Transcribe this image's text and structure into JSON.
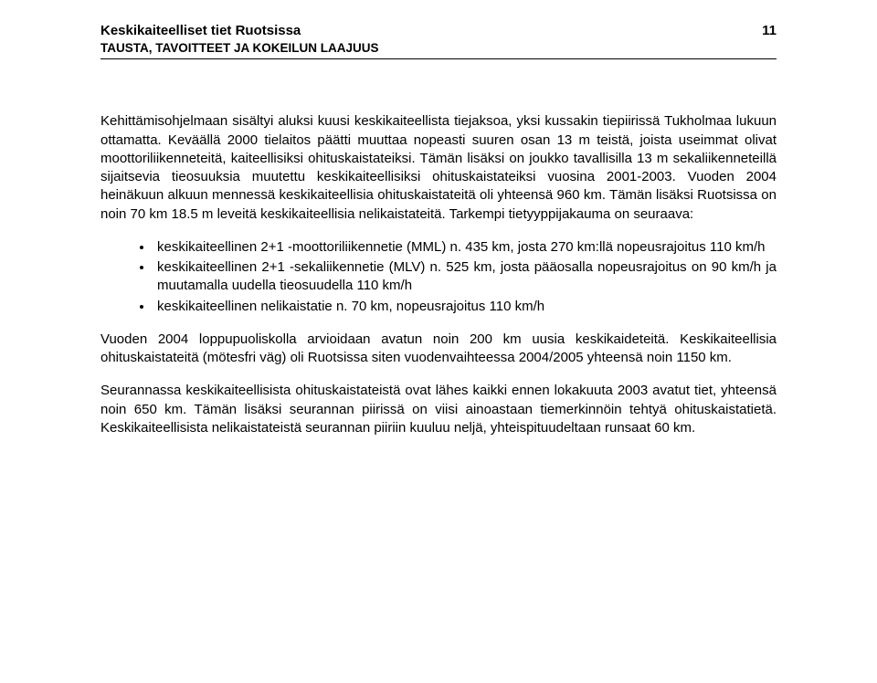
{
  "header": {
    "title": "Keskikaiteelliset tiet Ruotsissa",
    "subtitle": "TAUSTA, TAVOITTEET JA KOKEILUN LAAJUUS",
    "page_number": "11"
  },
  "paragraphs": {
    "p1": "Kehittämisohjelmaan sisältyi aluksi kuusi keskikaiteellista tiejaksoa, yksi kussakin tiepiirissä Tukholmaa lukuun ottamatta. Keväällä 2000 tielaitos päätti muuttaa nopeasti suuren osan 13 m teistä, joista useimmat olivat moottoriliikenneteitä, kaiteellisiksi ohituskaistateiksi. Tämän lisäksi on joukko tavallisilla 13 m sekaliikenneteillä sijaitsevia tieosuuksia muutettu keskikaiteellisiksi ohituskaistateiksi vuosina 2001-2003. Vuoden 2004 heinäkuun alkuun mennessä keskikaiteellisia ohituskaistateitä oli yhteensä 960 km. Tämän lisäksi Ruotsissa on noin 70 km 18.5 m leveitä keskikaiteellisia nelikaistateitä. Tarkempi tietyyppijakauma on seuraava:",
    "p2": "Vuoden 2004 loppupuoliskolla arvioidaan avatun noin 200 km uusia keskikaideteitä. Keskikaiteellisia ohituskaistateitä (mötesfri väg) oli Ruotsissa siten vuodenvaihteessa 2004/2005 yhteensä noin 1150 km.",
    "p3": "Seurannassa keskikaiteellisista ohituskaistateistä ovat lähes kaikki ennen lokakuuta 2003 avatut tiet, yhteensä noin 650 km. Tämän lisäksi seurannan piirissä on viisi ainoastaan tiemerkinnöin tehtyä ohituskaistatietä. Keskikaiteellisista nelikaistateistä seurannan piiriin kuuluu neljä, yhteispituudeltaan runsaat 60 km."
  },
  "bullets": [
    "keskikaiteellinen 2+1 -moottoriliikennetie (MML) n. 435 km, josta 270 km:llä nopeusrajoitus 110 km/h",
    "keskikaiteellinen 2+1 -sekaliikennetie (MLV) n. 525 km, josta pääosalla nopeusrajoitus on 90 km/h ja muutamalla uudella tieosuudella 110 km/h",
    "keskikaiteellinen nelikaistatie n. 70 km, nopeusrajoitus 110 km/h"
  ]
}
